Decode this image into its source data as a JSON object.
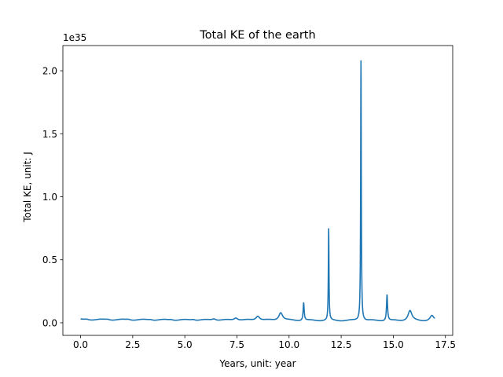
{
  "chart_data": {
    "type": "line",
    "title": "Total KE of the earth",
    "xlabel": "Years, unit: year",
    "ylabel": "Total KE, unit: J",
    "offset_text": "1e35",
    "xlim": [
      -0.85,
      17.85
    ],
    "ylim": [
      -0.1,
      2.2
    ],
    "xticks": [
      0.0,
      2.5,
      5.0,
      7.5,
      10.0,
      12.5,
      15.0,
      17.5
    ],
    "xtick_labels": [
      "0.0",
      "2.5",
      "5.0",
      "7.5",
      "10.0",
      "12.5",
      "15.0",
      "17.5"
    ],
    "yticks": [
      0.0,
      0.5,
      1.0,
      1.5,
      2.0
    ],
    "ytick_labels": [
      "0.0",
      "0.5",
      "1.0",
      "1.5",
      "2.0"
    ],
    "grid": false,
    "series": [
      {
        "color": "#1f77b4",
        "baseline": {
          "start": 0.025,
          "end": 0.015
        },
        "wiggle_period": 1.0,
        "wiggle_amplitude": 0.004,
        "x_range": [
          0.0,
          17.0
        ],
        "peaks": [
          {
            "x": 0.3,
            "y": 0.03
          },
          {
            "x": 1.3,
            "y": 0.03
          },
          {
            "x": 2.3,
            "y": 0.03
          },
          {
            "x": 3.35,
            "y": 0.03
          },
          {
            "x": 4.35,
            "y": 0.03
          },
          {
            "x": 5.4,
            "y": 0.032
          },
          {
            "x": 6.4,
            "y": 0.037
          },
          {
            "x": 7.45,
            "y": 0.045
          },
          {
            "x": 8.5,
            "y": 0.06
          },
          {
            "x": 9.6,
            "y": 0.088
          },
          {
            "x": 10.7,
            "y": 0.165
          },
          {
            "x": 11.9,
            "y": 0.75
          },
          {
            "x": 13.45,
            "y": 2.09
          },
          {
            "x": 14.7,
            "y": 0.23
          },
          {
            "x": 15.8,
            "y": 0.105
          },
          {
            "x": 16.85,
            "y": 0.065
          }
        ],
        "end_value": 0.04
      }
    ]
  }
}
